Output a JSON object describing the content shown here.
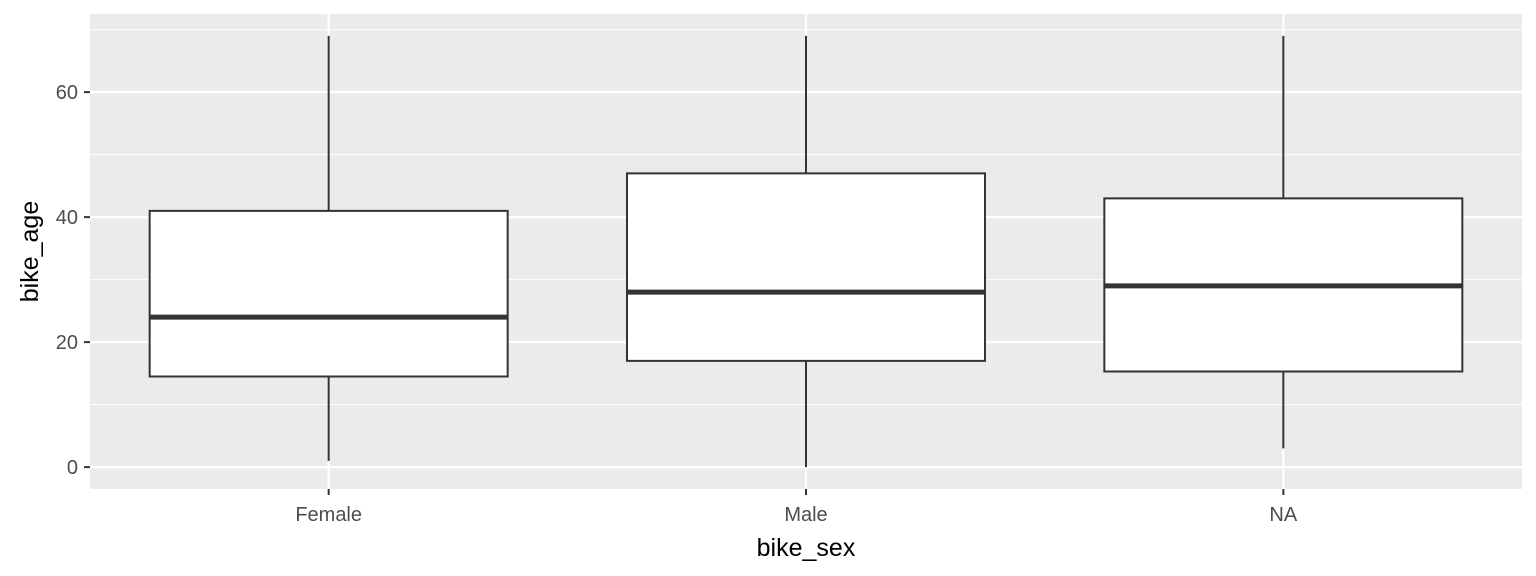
{
  "chart_data": {
    "type": "boxplot",
    "xlabel": "bike_sex",
    "ylabel": "bike_age",
    "categories": [
      "Female",
      "Male",
      "NA"
    ],
    "boxes": [
      {
        "category": "Female",
        "whisker_low": 1,
        "q1": 14.5,
        "median": 24,
        "q3": 41,
        "whisker_high": 69
      },
      {
        "category": "Male",
        "whisker_low": 0,
        "q1": 17,
        "median": 28,
        "q3": 47,
        "whisker_high": 69
      },
      {
        "category": "NA",
        "whisker_low": 3,
        "q1": 15.3,
        "median": 29,
        "q3": 43,
        "whisker_high": 69
      }
    ],
    "yticks": [
      0,
      20,
      40,
      60
    ],
    "ytick_labels": [
      "0",
      "20",
      "40",
      "60"
    ],
    "ylim": [
      -3.5,
      72.5
    ],
    "grid": true,
    "colors": {
      "panel": "#ebebeb",
      "grid": "#ffffff",
      "box_fill": "#ffffff",
      "box_line": "#333333",
      "tick_text": "#4d4d4d",
      "axis_title": "#000000"
    }
  }
}
